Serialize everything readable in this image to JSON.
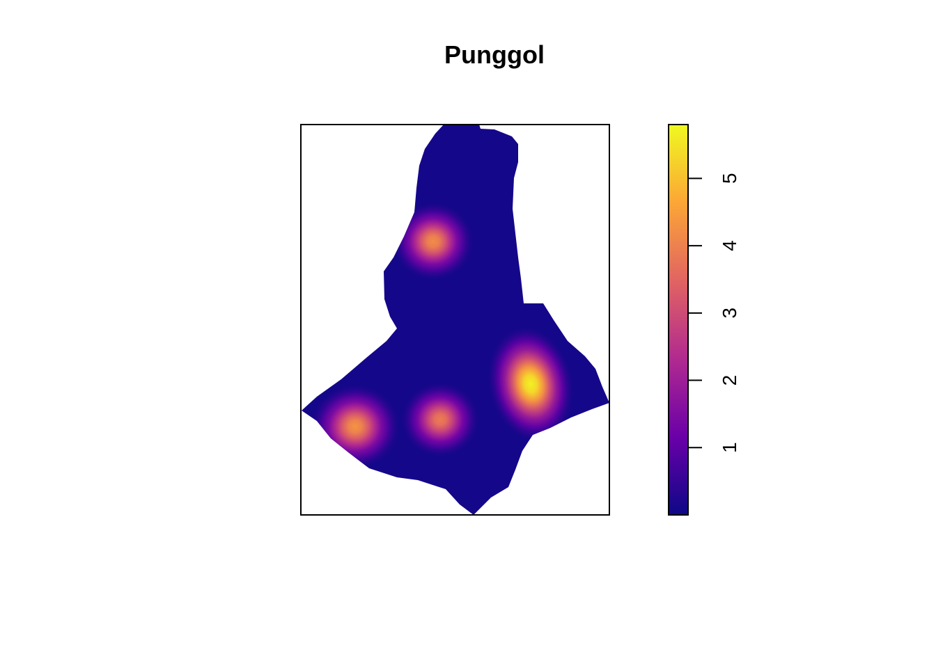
{
  "chart_data": {
    "type": "heatmap",
    "title": "Punggol",
    "xlabel": "",
    "ylabel": "",
    "axes_drawn": false,
    "colorscale": {
      "name": "plasma",
      "range": [
        0,
        5.8
      ],
      "ticks": [
        1,
        2,
        3,
        4,
        5
      ],
      "tick_labels": [
        "1",
        "2",
        "3",
        "4",
        "5"
      ],
      "colors": [
        "#0d0887",
        "#6a00a8",
        "#b12a90",
        "#e16462",
        "#fca636",
        "#f0f921"
      ]
    },
    "hotspots": [
      {
        "name": "north",
        "peak": 4.2
      },
      {
        "name": "south-west",
        "peak": 4.3
      },
      {
        "name": "south-central",
        "peak": 3.9
      },
      {
        "name": "east",
        "peak": 5.7
      }
    ],
    "background_value": 0.1
  }
}
